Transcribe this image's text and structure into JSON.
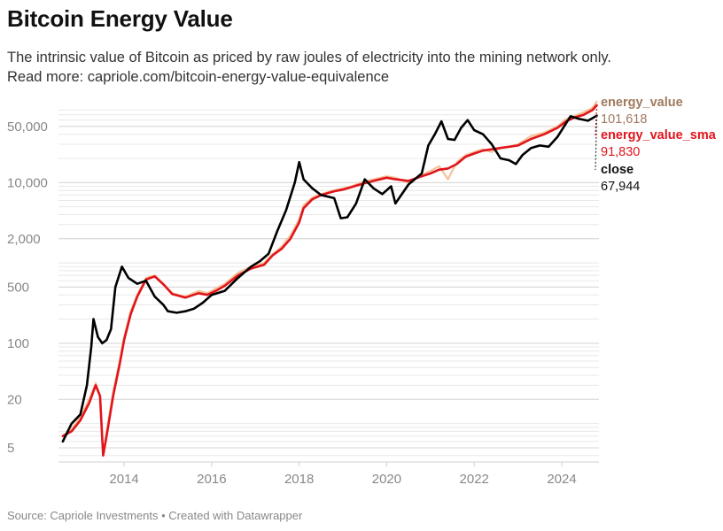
{
  "header": {
    "title": "Bitcoin Energy Value",
    "subtitle_line1": "The intrinsic value of Bitcoin as priced by raw joules of electricity into the mining network only.",
    "subtitle_line2": "Read more: capriole.com/bitcoin-energy-value-equivalence"
  },
  "footer": {
    "source": "Source: Capriole Investments • Created with Datawrapper"
  },
  "chart_data": {
    "type": "line",
    "y_scale": "log",
    "ylim": [
      3.5,
      85000
    ],
    "xlim": [
      2012.5,
      2024.85
    ],
    "y_ticks": [
      {
        "value": 5,
        "label": "5"
      },
      {
        "value": 20,
        "label": "20"
      },
      {
        "value": 100,
        "label": "100"
      },
      {
        "value": 500,
        "label": "500"
      },
      {
        "value": 2000,
        "label": "2,000"
      },
      {
        "value": 10000,
        "label": "10,000"
      },
      {
        "value": 50000,
        "label": "50,000"
      }
    ],
    "x_ticks": [
      {
        "value": 2014,
        "label": "2014"
      },
      {
        "value": 2016,
        "label": "2016"
      },
      {
        "value": 2018,
        "label": "2018"
      },
      {
        "value": 2020,
        "label": "2020"
      },
      {
        "value": 2022,
        "label": "2022"
      },
      {
        "value": 2024,
        "label": "2024"
      }
    ],
    "grid": true,
    "series": [
      {
        "name": "energy_value",
        "color": "#f5c19a",
        "end_label": "101,618",
        "label_color": "#a07a5e",
        "x": [
          2012.6,
          2012.8,
          2013.0,
          2013.2,
          2013.35,
          2013.45,
          2013.52,
          2013.6,
          2013.75,
          2013.9,
          2014.0,
          2014.15,
          2014.3,
          2014.5,
          2014.7,
          2014.9,
          2015.1,
          2015.4,
          2015.7,
          2015.9,
          2016.1,
          2016.3,
          2016.6,
          2016.9,
          2017.2,
          2017.4,
          2017.6,
          2017.8,
          2018.0,
          2018.1,
          2018.3,
          2018.5,
          2018.8,
          2019.0,
          2019.2,
          2019.4,
          2019.7,
          2020.0,
          2020.2,
          2020.5,
          2020.8,
          2021.0,
          2021.2,
          2021.4,
          2021.6,
          2021.8,
          2022.0,
          2022.2,
          2022.4,
          2022.6,
          2022.8,
          2023.0,
          2023.3,
          2023.6,
          2023.9,
          2024.1,
          2024.3,
          2024.5,
          2024.7,
          2024.8
        ],
        "values": [
          7,
          8.5,
          12,
          20,
          32,
          22,
          4,
          8,
          25,
          60,
          120,
          250,
          400,
          650,
          700,
          550,
          420,
          380,
          450,
          420,
          480,
          550,
          750,
          900,
          1000,
          1300,
          1600,
          2200,
          3500,
          5200,
          6500,
          7200,
          8000,
          8500,
          9000,
          10000,
          11000,
          12000,
          11500,
          10000,
          12500,
          14000,
          16000,
          11000,
          18000,
          22000,
          24000,
          26000,
          24000,
          27000,
          28000,
          30000,
          38000,
          42000,
          50000,
          62000,
          68000,
          75000,
          85000,
          101618
        ]
      },
      {
        "name": "energy_value_sma",
        "color": "#e0151b",
        "end_label": "91,830",
        "label_color": "#e0151b",
        "x": [
          2012.6,
          2012.8,
          2013.0,
          2013.2,
          2013.35,
          2013.45,
          2013.52,
          2013.6,
          2013.75,
          2013.9,
          2014.0,
          2014.15,
          2014.3,
          2014.5,
          2014.7,
          2014.9,
          2015.1,
          2015.4,
          2015.7,
          2015.9,
          2016.1,
          2016.3,
          2016.6,
          2016.9,
          2017.2,
          2017.4,
          2017.6,
          2017.8,
          2018.0,
          2018.1,
          2018.3,
          2018.5,
          2018.8,
          2019.0,
          2019.2,
          2019.4,
          2019.7,
          2020.0,
          2020.2,
          2020.5,
          2020.8,
          2021.0,
          2021.2,
          2021.4,
          2021.6,
          2021.8,
          2022.0,
          2022.2,
          2022.4,
          2022.6,
          2022.8,
          2023.0,
          2023.3,
          2023.6,
          2023.9,
          2024.1,
          2024.3,
          2024.5,
          2024.7,
          2024.8
        ],
        "values": [
          7,
          8,
          11,
          18,
          30,
          22,
          4,
          7,
          22,
          55,
          110,
          230,
          380,
          620,
          680,
          540,
          410,
          370,
          420,
          400,
          450,
          520,
          700,
          850,
          950,
          1250,
          1500,
          2000,
          3200,
          4800,
          6200,
          7000,
          7800,
          8200,
          8800,
          9500,
          10500,
          11500,
          11000,
          10500,
          12000,
          13000,
          14500,
          15000,
          17000,
          21000,
          23000,
          25000,
          26000,
          27000,
          28000,
          29000,
          35000,
          40000,
          48000,
          58000,
          65000,
          70000,
          80000,
          91830
        ]
      },
      {
        "name": "close",
        "color": "#000000",
        "end_label": "67,944",
        "label_color": "#111111",
        "x": [
          2012.6,
          2012.8,
          2013.0,
          2013.15,
          2013.25,
          2013.3,
          2013.4,
          2013.5,
          2013.6,
          2013.7,
          2013.8,
          2013.95,
          2014.1,
          2014.3,
          2014.5,
          2014.7,
          2014.9,
          2015.0,
          2015.2,
          2015.4,
          2015.6,
          2015.8,
          2016.0,
          2016.3,
          2016.6,
          2016.9,
          2017.1,
          2017.3,
          2017.5,
          2017.7,
          2017.9,
          2018.0,
          2018.1,
          2018.3,
          2018.5,
          2018.8,
          2018.95,
          2019.1,
          2019.3,
          2019.5,
          2019.7,
          2019.9,
          2020.1,
          2020.2,
          2020.5,
          2020.8,
          2020.95,
          2021.1,
          2021.25,
          2021.4,
          2021.55,
          2021.7,
          2021.85,
          2022.0,
          2022.2,
          2022.4,
          2022.6,
          2022.8,
          2022.95,
          2023.1,
          2023.3,
          2023.5,
          2023.7,
          2023.9,
          2024.0,
          2024.2,
          2024.4,
          2024.6,
          2024.8
        ],
        "values": [
          6,
          10,
          13,
          30,
          90,
          200,
          120,
          100,
          110,
          150,
          500,
          900,
          650,
          550,
          600,
          380,
          300,
          250,
          240,
          250,
          270,
          320,
          400,
          450,
          650,
          900,
          1050,
          1300,
          2500,
          4500,
          10000,
          18000,
          11000,
          8500,
          7000,
          6400,
          3600,
          3700,
          5500,
          11000,
          8500,
          7200,
          9000,
          5500,
          9500,
          13000,
          29000,
          40000,
          58000,
          35000,
          34000,
          48000,
          60000,
          45000,
          40000,
          30000,
          20000,
          19000,
          17000,
          22000,
          27000,
          29000,
          28000,
          37000,
          45000,
          67000,
          62000,
          59000,
          67944
        ]
      }
    ]
  }
}
